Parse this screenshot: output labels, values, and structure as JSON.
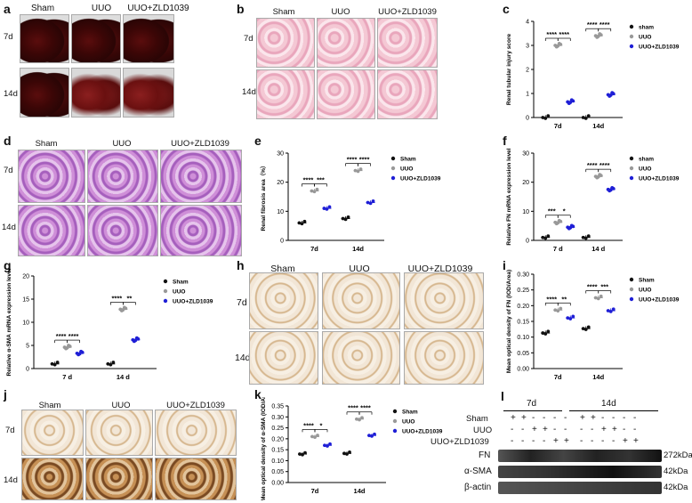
{
  "panel_letters": {
    "a": "a",
    "b": "b",
    "c": "c",
    "d": "d",
    "e": "e",
    "f": "f",
    "g": "g",
    "h": "h",
    "i": "i",
    "j": "j",
    "k": "k",
    "l": "l"
  },
  "groups": {
    "sham": "Sham",
    "uuo": "UUO",
    "zld": "UUO+ZLD1039"
  },
  "times": {
    "d7": "7d",
    "d14": "14d",
    "d7s": "7 d",
    "d14s": "14 d"
  },
  "colors": {
    "sham": "#111111",
    "uuo": "#999999",
    "zld": "#1f1fd6"
  },
  "chart_data": [
    {
      "panel": "c",
      "type": "scatter",
      "ylabel": "Renal tubular injury score",
      "ylim": [
        0,
        4
      ],
      "yticks": [
        0,
        1,
        2,
        3,
        4
      ],
      "categories": [
        "7d",
        "14d"
      ],
      "legend": [
        "sham",
        "UUO",
        "UUO+ZLD1039"
      ],
      "significance": [
        [
          "****",
          "****"
        ],
        [
          "****",
          "****"
        ]
      ],
      "series": [
        {
          "name": "sham",
          "means": [
            0,
            0
          ]
        },
        {
          "name": "UUO",
          "means": [
            3.0,
            3.4
          ]
        },
        {
          "name": "UUO+ZLD1039",
          "means": [
            0.65,
            0.95
          ]
        }
      ]
    },
    {
      "panel": "e",
      "type": "scatter",
      "ylabel": "Renal fibrosis area（%）",
      "ylim": [
        0,
        30
      ],
      "yticks": [
        0,
        10,
        20,
        30
      ],
      "categories": [
        "7d",
        "14d"
      ],
      "legend": [
        "Sham",
        "UUO",
        "UUO+ZLD1039"
      ],
      "significance": [
        [
          "****",
          "***"
        ],
        [
          "****",
          "****"
        ]
      ],
      "series": [
        {
          "name": "Sham",
          "means": [
            6,
            7.5
          ]
        },
        {
          "name": "UUO",
          "means": [
            17,
            24
          ]
        },
        {
          "name": "UUO+ZLD1039",
          "means": [
            11,
            13
          ]
        }
      ]
    },
    {
      "panel": "f",
      "type": "scatter",
      "ylabel": "Relative FN mRNA expression level",
      "ylim": [
        0,
        30
      ],
      "yticks": [
        0,
        10,
        20,
        30
      ],
      "categories": [
        "7 d",
        "14 d"
      ],
      "legend": [
        "sham",
        "UUO",
        "UUO+ZLD1039"
      ],
      "significance": [
        [
          "***",
          "*"
        ],
        [
          "****",
          "****"
        ]
      ],
      "series": [
        {
          "name": "sham",
          "means": [
            1,
            1
          ]
        },
        {
          "name": "UUO",
          "means": [
            6.2,
            22
          ]
        },
        {
          "name": "UUO+ZLD1039",
          "means": [
            4.5,
            17.5
          ]
        }
      ]
    },
    {
      "panel": "g",
      "type": "scatter",
      "ylabel": "Relative α-SMA mRNA expression level",
      "ylim": [
        0,
        20
      ],
      "yticks": [
        0,
        5,
        10,
        15,
        20
      ],
      "categories": [
        "7 d",
        "14 d"
      ],
      "legend": [
        "Sham",
        "UUO",
        "UUO+ZLD1039"
      ],
      "significance": [
        [
          "****",
          "****"
        ],
        [
          "****",
          "**"
        ]
      ],
      "series": [
        {
          "name": "Sham",
          "means": [
            1,
            1
          ]
        },
        {
          "name": "UUO",
          "means": [
            4.6,
            12.8
          ]
        },
        {
          "name": "UUO+ZLD1039",
          "means": [
            3.3,
            6.2
          ]
        }
      ]
    },
    {
      "panel": "i",
      "type": "scatter",
      "ylabel": "Mean optical density of FN (IOD/Area)",
      "ylim": [
        0,
        0.3
      ],
      "yticks": [
        "0.00",
        "0.05",
        "0.10",
        "0.15",
        "0.20",
        "0.25",
        "0.30"
      ],
      "categories": [
        "7d",
        "14d"
      ],
      "legend": [
        "Sham",
        "UUO",
        "UUO+ZLD1039"
      ],
      "significance": [
        [
          "****",
          "**"
        ],
        [
          "****",
          "***"
        ]
      ],
      "series": [
        {
          "name": "Sham",
          "means": [
            0.113,
            0.127
          ]
        },
        {
          "name": "UUO",
          "means": [
            0.186,
            0.225
          ]
        },
        {
          "name": "UUO+ZLD1039",
          "means": [
            0.161,
            0.184
          ]
        }
      ]
    },
    {
      "panel": "k",
      "type": "scatter",
      "ylabel": "Mean optical density of α-SMA (IOD/Area)",
      "ylim": [
        0,
        0.35
      ],
      "yticks": [
        "0.00",
        "0.05",
        "0.10",
        "0.15",
        "0.20",
        "0.25",
        "0.30",
        "0.35"
      ],
      "categories": [
        "7d",
        "14d"
      ],
      "legend": [
        "Sham",
        "UUO",
        "UUO+ZLD1039"
      ],
      "significance": [
        [
          "****",
          "*"
        ],
        [
          "****",
          "****"
        ]
      ],
      "series": [
        {
          "name": "Sham",
          "means": [
            0.13,
            0.133
          ]
        },
        {
          "name": "UUO",
          "means": [
            0.21,
            0.29
          ]
        },
        {
          "name": "UUO+ZLD1039",
          "means": [
            0.17,
            0.215
          ]
        }
      ]
    }
  ],
  "western": {
    "times": [
      "7d",
      "14d"
    ],
    "rows": [
      {
        "label": "Sham",
        "marks": [
          "+",
          "+",
          "-",
          "-",
          "-",
          "-",
          "+",
          "+",
          "-",
          "-",
          "-",
          "-"
        ]
      },
      {
        "label": "UUO",
        "marks": [
          "-",
          "-",
          "+",
          "+",
          "-",
          "-",
          "-",
          "-",
          "+",
          "+",
          "-",
          "-"
        ]
      },
      {
        "label": "UUO+ZLD1039",
        "marks": [
          "-",
          "-",
          "-",
          "-",
          "+",
          "+",
          "-",
          "-",
          "-",
          "-",
          "+",
          "+"
        ]
      }
    ],
    "bands": [
      {
        "label": "FN",
        "size": "272kDa"
      },
      {
        "label": "α-SMA",
        "size": "42kDa"
      },
      {
        "label": "β-actin",
        "size": "42kDa"
      }
    ]
  }
}
